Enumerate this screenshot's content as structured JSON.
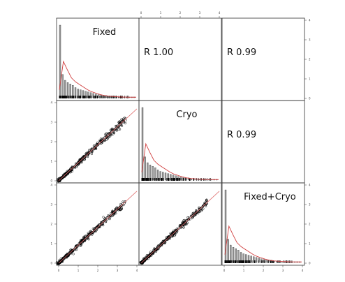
{
  "chart_data": {
    "type": "scatter",
    "layout": "pairs-matrix",
    "variables": [
      "Fixed",
      "Cryo",
      "Fixed+Cryo"
    ],
    "diagonal": "histogram-with-density",
    "upper_panel": "correlation",
    "lower_panel": "scatter-with-trend-line",
    "correlations": [
      {
        "row": 0,
        "col": 1,
        "text": "R 1.00"
      },
      {
        "row": 0,
        "col": 2,
        "text": "R 0.99"
      },
      {
        "row": 1,
        "col": 2,
        "text": "R 0.99"
      }
    ],
    "ticks": [
      0,
      1,
      2,
      3,
      4
    ],
    "histogram_counts": [
      100,
      32,
      24,
      21,
      19,
      17,
      14,
      12,
      11,
      10,
      9,
      8,
      7,
      6,
      5,
      4,
      4,
      3,
      3,
      2,
      2,
      2,
      1,
      1,
      1,
      1,
      1,
      1,
      1,
      1
    ],
    "density": [
      0.12,
      0.55,
      0.42,
      0.3,
      0.24,
      0.2,
      0.16,
      0.12,
      0.09,
      0.07,
      0.05,
      0.035,
      0.025,
      0.02,
      0.015,
      0.012,
      0.01,
      0.009,
      0.008,
      0.008
    ],
    "colors": {
      "density": "#d04040",
      "trend": "#e07070",
      "points": "#000000",
      "frame": "#333333"
    }
  }
}
